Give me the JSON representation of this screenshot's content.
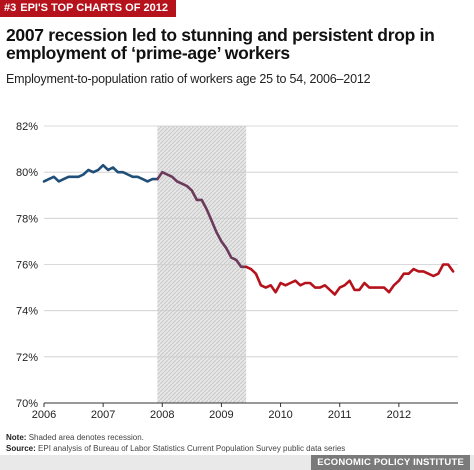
{
  "header": {
    "badge_number": "#3",
    "badge_text": "EPI'S TOP CHARTS OF 2012",
    "title": "2007 recession led to stunning and persistent drop in employment of ‘prime-age’ workers",
    "subtitle": "Employment-to-population ratio of workers age 25 to 54, 2006–2012"
  },
  "footer": {
    "note_label": "Note:",
    "note_text": "Shaded area denotes recession.",
    "source_label": "Source:",
    "source_text": "EPI analysis of Bureau of Labor Statistics Current Population Survey public data series",
    "brand": "ECONOMIC POLICY INSTITUTE"
  },
  "colors": {
    "banner": "#b5121b",
    "pre_recession_line": "#1f4e79",
    "recession_line": "#6b3a5b",
    "post_recession_line": "#b5121b",
    "shading": "#d9d9d9",
    "grid": "#cccccc"
  },
  "chart_data": {
    "type": "line",
    "title": "2007 recession led to stunning and persistent drop in employment of ‘prime-age’ workers",
    "subtitle": "Employment-to-population ratio of workers age 25 to 54, 2006–2012",
    "xlabel": "",
    "ylabel": "",
    "xlim": [
      2006.0,
      2013.0
    ],
    "ylim": [
      70,
      82
    ],
    "y_ticks": [
      70,
      72,
      74,
      76,
      78,
      80,
      82
    ],
    "y_tick_labels": [
      "70%",
      "72%",
      "74%",
      "76%",
      "78%",
      "80%",
      "82%"
    ],
    "x_ticks": [
      2006,
      2007,
      2008,
      2009,
      2010,
      2011,
      2012
    ],
    "x_tick_labels": [
      "2006",
      "2007",
      "2008",
      "2009",
      "2010",
      "2011",
      "2012"
    ],
    "grid": "horizontal",
    "recession_shading": {
      "start": "2007-12",
      "end": "2009-06"
    },
    "series": [
      {
        "segment": "pre-recession",
        "start": "2006-01",
        "values": [
          79.6,
          79.7,
          79.8,
          79.6,
          79.7,
          79.8,
          79.8,
          79.8,
          79.9,
          80.1,
          80.0,
          80.1,
          80.3,
          80.1,
          80.2,
          80.0,
          80.0,
          79.9,
          79.8,
          79.8,
          79.7,
          79.6,
          79.7,
          79.7
        ]
      },
      {
        "segment": "recession",
        "start": "2007-12",
        "values": [
          79.7,
          80.0,
          79.9,
          79.8,
          79.6,
          79.5,
          79.4,
          79.2,
          78.8,
          78.8,
          78.4,
          77.9,
          77.4,
          77.0,
          76.7,
          76.3,
          76.2,
          75.9,
          75.9
        ]
      },
      {
        "segment": "post-recession",
        "start": "2009-06",
        "values": [
          75.9,
          75.8,
          75.6,
          75.1,
          75.0,
          75.1,
          74.8,
          75.2,
          75.1,
          75.2,
          75.3,
          75.1,
          75.2,
          75.2,
          75.0,
          75.0,
          75.1,
          74.9,
          74.7,
          75.0,
          75.1,
          75.3,
          74.9,
          74.9,
          75.2,
          75.0,
          75.0,
          75.0,
          75.0,
          74.8,
          75.1,
          75.3,
          75.6,
          75.6,
          75.8,
          75.7,
          75.7,
          75.6,
          75.5,
          75.6,
          76.0,
          76.0,
          75.7
        ]
      }
    ]
  }
}
